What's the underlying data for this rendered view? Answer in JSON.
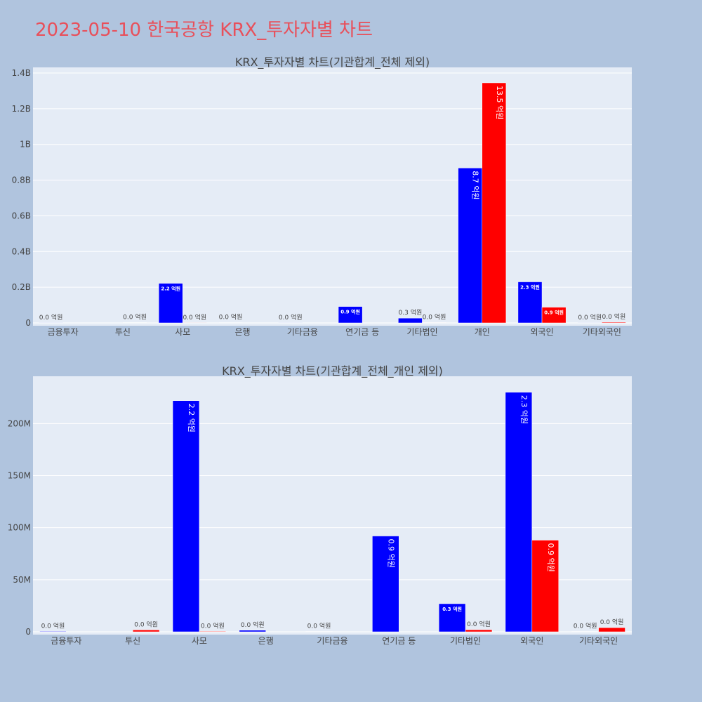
{
  "page": {
    "title": "2023-05-10 한국공항 KRX_투자자별 차트"
  },
  "chart_data": [
    {
      "type": "bar",
      "title": "KRX_투자자별 차트(기관합계_전체 제외)",
      "categories": [
        "금융투자",
        "투신",
        "사모",
        "은행",
        "기타금융",
        "연기금 등",
        "기타법인",
        "개인",
        "외국인",
        "기타외국인"
      ],
      "ylim": [
        0,
        1400000000
      ],
      "yticks": [
        0,
        200000000,
        400000000,
        600000000,
        800000000,
        1000000000,
        1200000000,
        1400000000
      ],
      "ytick_labels": [
        "0",
        "0.2B",
        "0.4B",
        "0.6B",
        "0.8B",
        "1B",
        "1.2B",
        "1.4B"
      ],
      "series": [
        {
          "color": "#0000ff",
          "values": [
            500000,
            0,
            222000000,
            1500000,
            300000,
            92000000,
            27000000,
            868000000,
            230000000,
            300000
          ],
          "labels": [
            "0.0 억원",
            "",
            "2.2 억원",
            "0.0 억원",
            "0.0 억원",
            "0.9 억원",
            "0.3 억원",
            "8.7 억원",
            "2.3 억원",
            "0.0 억원"
          ]
        },
        {
          "color": "#ff0000",
          "values": [
            0,
            1800000,
            500000,
            0,
            0,
            0,
            2000000,
            1345000000,
            88000000,
            4000000
          ],
          "labels": [
            "",
            "0.0 억원",
            "0.0 억원",
            "",
            "",
            "",
            "0.0 억원",
            "13.5 억원",
            "0.9 억원",
            "0.0 억원"
          ]
        }
      ],
      "grid": true
    },
    {
      "type": "bar",
      "title": "KRX_투자자별 차트(기관합계_전체_개인 제외)",
      "categories": [
        "금융투자",
        "투신",
        "사모",
        "은행",
        "기타금융",
        "연기금 등",
        "기타법인",
        "외국인",
        "기타외국인"
      ],
      "ylim": [
        0,
        240000000
      ],
      "yticks": [
        0,
        50000000,
        100000000,
        150000000,
        200000000
      ],
      "ytick_labels": [
        "0",
        "50M",
        "100M",
        "150M",
        "200M"
      ],
      "series": [
        {
          "color": "#0000ff",
          "values": [
            500000,
            0,
            222000000,
            1500000,
            300000,
            92000000,
            27000000,
            230000000,
            300000
          ],
          "labels": [
            "0.0 억원",
            "",
            "2.2 억원",
            "0.0 억원",
            "0.0 억원",
            "0.9 억원",
            "0.3 억원",
            "2.3 억원",
            "0.0 억원"
          ]
        },
        {
          "color": "#ff0000",
          "values": [
            0,
            1800000,
            500000,
            0,
            0,
            0,
            2000000,
            88000000,
            4000000
          ],
          "labels": [
            "",
            "0.0 억원",
            "0.0 억원",
            "",
            "",
            "",
            "0.0 억원",
            "0.9 억원",
            "0.0 억원"
          ]
        }
      ],
      "grid": true
    }
  ]
}
